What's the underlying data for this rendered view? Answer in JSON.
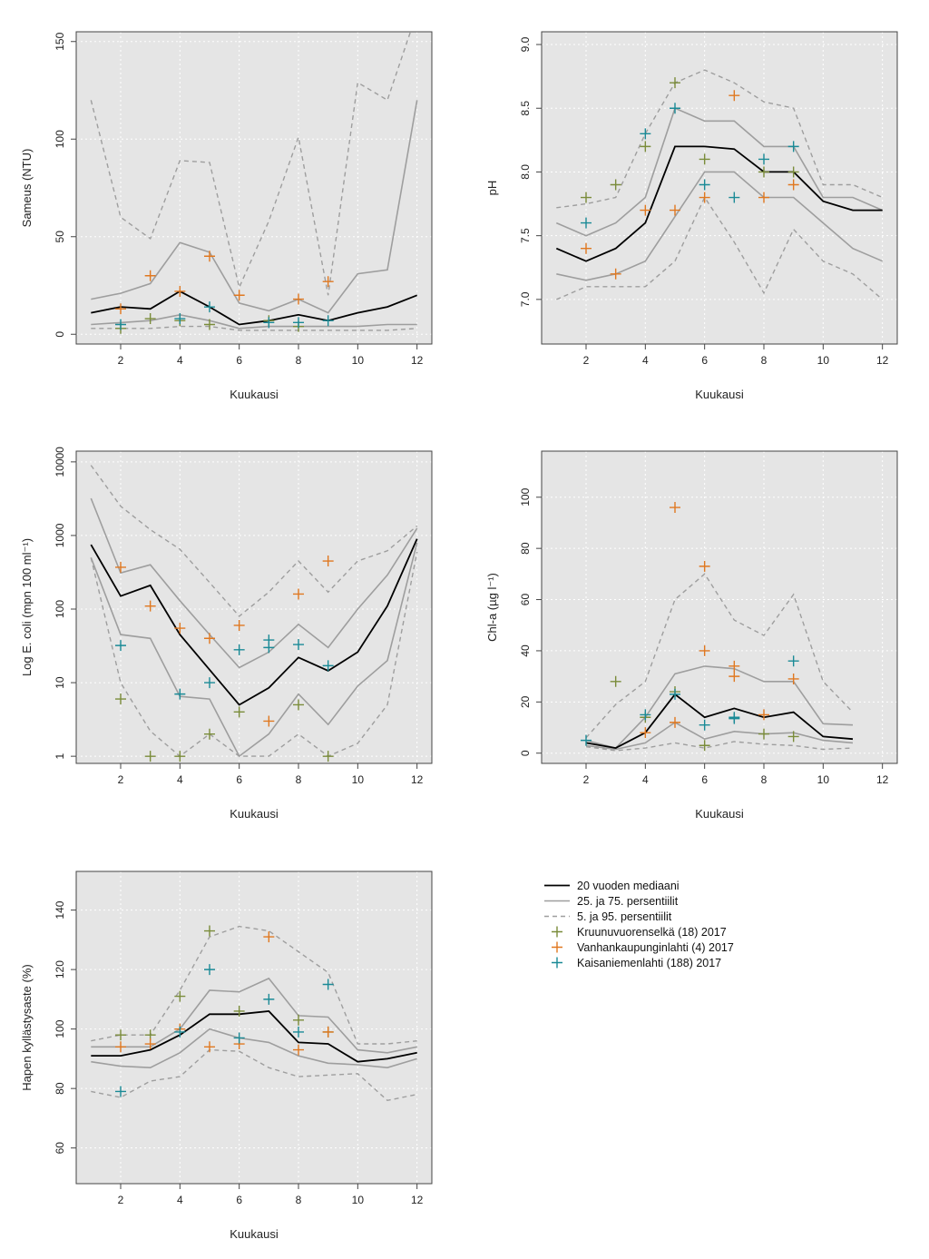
{
  "legend": {
    "items": [
      {
        "key": "median",
        "label": "20 vuoden mediaani",
        "kind": "line",
        "color": "#000000",
        "dash": false
      },
      {
        "key": "p25_75",
        "label": "25. ja 75. persentiilit",
        "kind": "line",
        "color": "#9e9e9e",
        "dash": false
      },
      {
        "key": "p5_95",
        "label": "5. ja 95. persentiilit",
        "kind": "line",
        "color": "#9e9e9e",
        "dash": true
      },
      {
        "key": "kruunu",
        "label": "Kruunuvuorenselkä (18) 2017",
        "kind": "plus",
        "color": "#7a8c3a"
      },
      {
        "key": "vanha",
        "label": "Vanhankaupunginlahti (4) 2017",
        "kind": "plus",
        "color": "#e07820"
      },
      {
        "key": "kaisa",
        "label": "Kaisaniemenlahti (188) 2017",
        "kind": "plus",
        "color": "#1a8a96"
      }
    ]
  },
  "chart_data": [
    {
      "type": "line",
      "xlabel": "Kuukausi",
      "ylabel": "Sameus (NTU)",
      "xlim": [
        0.5,
        12.5
      ],
      "ylim": [
        -5,
        155
      ],
      "yscale": "linear",
      "xticks": [
        2,
        4,
        6,
        8,
        10,
        12
      ],
      "yticks": [
        0,
        50,
        100,
        150
      ],
      "x": [
        1,
        2,
        3,
        4,
        5,
        6,
        7,
        8,
        9,
        10,
        11,
        12
      ],
      "median": [
        11,
        14,
        13,
        22,
        14,
        5,
        7,
        10,
        7,
        11,
        14,
        20
      ],
      "p25": [
        5,
        6,
        7,
        10,
        7,
        3,
        4,
        4,
        4,
        4,
        5,
        5
      ],
      "p75": [
        18,
        21,
        26,
        47,
        42,
        16,
        12,
        18,
        11,
        31,
        33,
        120
      ],
      "p5": [
        3,
        3,
        3,
        4,
        4,
        2,
        2,
        2,
        2,
        2,
        2,
        3
      ],
      "p95": [
        120,
        60,
        49,
        89,
        88,
        24,
        58,
        101,
        20,
        129,
        120,
        165
      ],
      "points": [
        {
          "series": "kruunu",
          "x": [
            2,
            3,
            4,
            5,
            7,
            8
          ],
          "y": [
            3,
            8,
            7,
            5,
            7,
            4
          ]
        },
        {
          "series": "vanha",
          "x": [
            2,
            3,
            4,
            5,
            6,
            8,
            9
          ],
          "y": [
            13,
            30,
            22,
            40,
            20,
            18,
            27
          ]
        },
        {
          "series": "kaisa",
          "x": [
            2,
            4,
            5,
            7,
            8,
            9
          ],
          "y": [
            5,
            8,
            14,
            6,
            6,
            7
          ]
        }
      ]
    },
    {
      "type": "line",
      "xlabel": "Kuukausi",
      "ylabel": "pH",
      "xlim": [
        0.5,
        12.5
      ],
      "ylim": [
        6.65,
        9.1
      ],
      "yscale": "linear",
      "xticks": [
        2,
        4,
        6,
        8,
        10,
        12
      ],
      "yticks": [
        7.0,
        7.5,
        8.0,
        8.5,
        9.0
      ],
      "ytick_labels": [
        "7.0",
        "7.5",
        "8.0",
        "8.5",
        "9.0"
      ],
      "x": [
        1,
        2,
        3,
        4,
        5,
        6,
        7,
        8,
        9,
        10,
        11,
        12
      ],
      "median": [
        7.4,
        7.3,
        7.4,
        7.6,
        8.2,
        8.2,
        8.18,
        8.0,
        8.0,
        7.77,
        7.7,
        7.7
      ],
      "p25": [
        7.2,
        7.15,
        7.2,
        7.3,
        7.65,
        8.0,
        8.0,
        7.8,
        7.8,
        7.6,
        7.4,
        7.3
      ],
      "p75": [
        7.6,
        7.5,
        7.6,
        7.8,
        8.5,
        8.4,
        8.4,
        8.2,
        8.2,
        7.8,
        7.8,
        7.7
      ],
      "p5": [
        7.0,
        7.1,
        7.1,
        7.1,
        7.3,
        7.8,
        7.45,
        7.05,
        7.55,
        7.3,
        7.2,
        7.0
      ],
      "p95": [
        7.72,
        7.75,
        7.8,
        8.3,
        8.7,
        8.8,
        8.7,
        8.55,
        8.5,
        7.9,
        7.9,
        7.8
      ],
      "points": [
        {
          "series": "kruunu",
          "x": [
            2,
            3,
            4,
            5,
            6,
            8,
            9
          ],
          "y": [
            7.8,
            7.9,
            8.2,
            8.7,
            8.1,
            8.0,
            8.0
          ]
        },
        {
          "series": "vanha",
          "x": [
            2,
            3,
            4,
            5,
            6,
            7,
            8,
            9
          ],
          "y": [
            7.4,
            7.2,
            7.7,
            7.7,
            7.8,
            8.6,
            7.8,
            7.9
          ]
        },
        {
          "series": "kaisa",
          "x": [
            2,
            4,
            5,
            6,
            7,
            8,
            9
          ],
          "y": [
            7.6,
            8.3,
            8.5,
            7.9,
            7.8,
            8.1,
            8.2
          ]
        }
      ]
    },
    {
      "type": "line",
      "xlabel": "Kuukausi",
      "ylabel": "Log E. coli (mpn 100 ml⁻¹)",
      "xlim": [
        0.5,
        12.5
      ],
      "ylim": [
        0.8,
        14000
      ],
      "yscale": "log",
      "xticks": [
        2,
        4,
        6,
        8,
        10,
        12
      ],
      "yticks": [
        1,
        10,
        100,
        1000,
        10000
      ],
      "ytick_labels": [
        "1",
        "10",
        "100",
        "1000",
        "10000"
      ],
      "x": [
        1,
        2,
        3,
        4,
        5,
        6,
        7,
        8,
        9,
        10,
        11,
        12
      ],
      "median": [
        750,
        150,
        210,
        45,
        15,
        5,
        8.5,
        22,
        14.5,
        26,
        110,
        900
      ],
      "p25": [
        500,
        45,
        40,
        6.5,
        6,
        1,
        2,
        7,
        2.7,
        9,
        20,
        800
      ],
      "p75": [
        3200,
        310,
        400,
        130,
        45,
        16,
        26,
        62,
        30,
        100,
        290,
        1250
      ],
      "p5": [
        500,
        10,
        2.2,
        1,
        2,
        1,
        1,
        2,
        1,
        1.5,
        5,
        600
      ],
      "p95": [
        9000,
        2500,
        1200,
        650,
        230,
        80,
        170,
        450,
        170,
        450,
        620,
        1350
      ],
      "points": [
        {
          "series": "kruunu",
          "x": [
            2,
            3,
            4,
            5,
            6,
            8,
            9
          ],
          "y": [
            6,
            1,
            1,
            2,
            4,
            5,
            1
          ]
        },
        {
          "series": "vanha",
          "x": [
            2,
            3,
            4,
            5,
            6,
            7,
            8,
            9
          ],
          "y": [
            370,
            110,
            55,
            40,
            60,
            3,
            160,
            450
          ]
        },
        {
          "series": "kaisa",
          "x": [
            2,
            4,
            5,
            6,
            7,
            7,
            8,
            9
          ],
          "y": [
            32,
            7,
            10,
            28,
            38,
            30,
            33,
            17
          ]
        }
      ]
    },
    {
      "type": "line",
      "xlabel": "Kuukausi",
      "ylabel": "Chl-a (µg l⁻¹)",
      "xlim": [
        0.5,
        12.5
      ],
      "ylim": [
        -4,
        118
      ],
      "yscale": "linear",
      "xticks": [
        2,
        4,
        6,
        8,
        10,
        12
      ],
      "yticks": [
        0,
        20,
        40,
        60,
        80,
        100
      ],
      "x": [
        2,
        3,
        4,
        5,
        6,
        7,
        8,
        9,
        10,
        11
      ],
      "median": [
        4,
        2,
        8,
        23,
        14,
        17.5,
        14,
        16,
        6.5,
        5.5
      ],
      "p25": [
        3,
        1.5,
        4,
        12,
        5.5,
        8.5,
        7.5,
        8,
        5,
        4
      ],
      "p75": [
        5,
        2,
        14,
        31,
        34,
        33,
        28,
        28,
        11.5,
        11
      ],
      "p5": [
        2.5,
        1,
        2,
        4,
        2,
        4.5,
        3.5,
        3,
        1.5,
        2
      ],
      "p95": [
        6,
        19,
        28,
        60,
        70,
        52,
        46,
        62,
        28,
        16
      ],
      "points": [
        {
          "series": "kruunu",
          "x": [
            3,
            4,
            5,
            6,
            8,
            9
          ],
          "y": [
            28,
            14,
            24,
            3,
            7.5,
            6.5
          ]
        },
        {
          "series": "vanha",
          "x": [
            4,
            5,
            5,
            6,
            6,
            7,
            7,
            8,
            9
          ],
          "y": [
            8,
            96,
            12,
            73,
            40,
            30,
            34,
            15,
            29
          ]
        },
        {
          "series": "kaisa",
          "x": [
            2,
            4,
            5,
            6,
            7,
            7,
            9
          ],
          "y": [
            5,
            15,
            23,
            11,
            14,
            13.5,
            36
          ]
        }
      ]
    },
    {
      "type": "line",
      "xlabel": "Kuukausi",
      "ylabel": "Hapen kyllästysaste (%)",
      "xlim": [
        0.5,
        12.5
      ],
      "ylim": [
        48,
        153
      ],
      "yscale": "linear",
      "xticks": [
        2,
        4,
        6,
        8,
        10,
        12
      ],
      "yticks": [
        60,
        80,
        100,
        120,
        140
      ],
      "x": [
        1,
        2,
        3,
        4,
        5,
        6,
        7,
        8,
        9,
        10,
        11,
        12
      ],
      "median": [
        91,
        91,
        93,
        98,
        105,
        105,
        106,
        95.5,
        95,
        89,
        90,
        92
      ],
      "p25": [
        89,
        87.5,
        87,
        92,
        100,
        97,
        95.5,
        91,
        88.5,
        88,
        87,
        90
      ],
      "p75": [
        94,
        94,
        94,
        100,
        113,
        112.5,
        117,
        104.5,
        104,
        93,
        92,
        94
      ],
      "p5": [
        79,
        77,
        82.5,
        84,
        93,
        92.5,
        87,
        84,
        84.5,
        85,
        76,
        78
      ],
      "p95": [
        96,
        98,
        98,
        113,
        131,
        134.5,
        133,
        126,
        119,
        95,
        95,
        96
      ],
      "points": [
        {
          "series": "kruunu",
          "x": [
            2,
            3,
            4,
            5,
            6,
            8,
            9
          ],
          "y": [
            98,
            98,
            111,
            133,
            106,
            103,
            99
          ]
        },
        {
          "series": "vanha",
          "x": [
            2,
            3,
            4,
            5,
            6,
            7,
            8,
            9
          ],
          "y": [
            94,
            95,
            100,
            94,
            95,
            131,
            93,
            99
          ]
        },
        {
          "series": "kaisa",
          "x": [
            2,
            4,
            5,
            6,
            7,
            8,
            9
          ],
          "y": [
            79,
            99,
            120,
            97,
            110,
            99,
            115
          ]
        }
      ]
    }
  ]
}
